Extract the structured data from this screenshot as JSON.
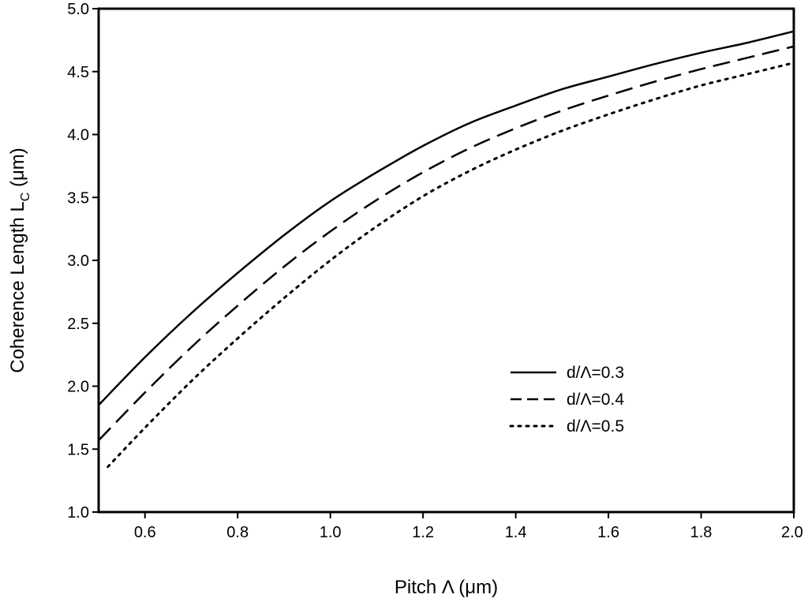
{
  "chart_data": {
    "type": "line",
    "xlabel": "Pitch Λ (μm)",
    "ylabel_main": "Coherence Length L",
    "ylabel_sub": "C",
    "ylabel_unit": " (μm)",
    "xlim": [
      0.5,
      2.0
    ],
    "ylim": [
      1.0,
      5.0
    ],
    "x_ticks": [
      0.6,
      0.8,
      1.0,
      1.2,
      1.4,
      1.6,
      1.8,
      2.0
    ],
    "x_tick_labels": [
      "0.6",
      "0.8",
      "1.0",
      "1.2",
      "1.4",
      "1.6",
      "1.8",
      "2.0"
    ],
    "y_ticks": [
      1.0,
      1.5,
      2.0,
      2.5,
      3.0,
      3.5,
      4.0,
      4.5,
      5.0
    ],
    "y_tick_labels": [
      "1.0",
      "1.5",
      "2.0",
      "2.5",
      "3.0",
      "3.5",
      "4.0",
      "4.5",
      "5.0"
    ],
    "grid": false,
    "legend_position": "center-right",
    "series": [
      {
        "name": "d/Λ=0.3",
        "style": "solid",
        "x": [
          0.5,
          0.6,
          0.7,
          0.8,
          0.9,
          1.0,
          1.1,
          1.2,
          1.3,
          1.4,
          1.5,
          1.6,
          1.7,
          1.8,
          1.9,
          2.0
        ],
        "y": [
          1.85,
          2.23,
          2.58,
          2.9,
          3.2,
          3.47,
          3.7,
          3.91,
          4.09,
          4.23,
          4.36,
          4.46,
          4.56,
          4.65,
          4.73,
          4.82
        ]
      },
      {
        "name": "d/Λ=0.4",
        "style": "dashed",
        "x": [
          0.5,
          0.6,
          0.7,
          0.8,
          0.9,
          1.0,
          1.1,
          1.2,
          1.3,
          1.4,
          1.5,
          1.6,
          1.7,
          1.8,
          1.9,
          2.0
        ],
        "y": [
          1.57,
          1.95,
          2.31,
          2.64,
          2.95,
          3.23,
          3.48,
          3.7,
          3.89,
          4.05,
          4.19,
          4.31,
          4.42,
          4.52,
          4.61,
          4.7
        ]
      },
      {
        "name": "d/Λ=0.5",
        "style": "dotted",
        "x": [
          0.52,
          0.6,
          0.7,
          0.8,
          0.9,
          1.0,
          1.1,
          1.2,
          1.3,
          1.4,
          1.5,
          1.6,
          1.7,
          1.8,
          1.9,
          2.0
        ],
        "y": [
          1.36,
          1.67,
          2.04,
          2.38,
          2.7,
          3.0,
          3.27,
          3.51,
          3.71,
          3.88,
          4.03,
          4.16,
          4.28,
          4.39,
          4.48,
          4.57
        ]
      }
    ]
  }
}
